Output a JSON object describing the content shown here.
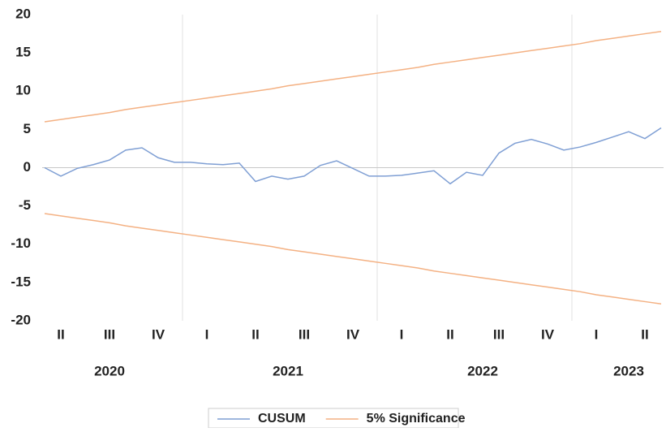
{
  "chart_data": {
    "type": "line",
    "categories": [
      null,
      "II",
      null,
      null,
      "III",
      null,
      null,
      "IV",
      null,
      null,
      "I",
      null,
      null,
      "II",
      null,
      null,
      "III",
      null,
      null,
      "IV",
      null,
      null,
      "I",
      null,
      null,
      "II",
      null,
      null,
      "III",
      null,
      null,
      "IV",
      null,
      null,
      "I",
      null,
      null,
      "II",
      null
    ],
    "years": [
      null,
      null,
      null,
      null,
      "2020",
      null,
      null,
      null,
      null,
      null,
      null,
      null,
      null,
      null,
      null,
      "2021",
      null,
      null,
      null,
      null,
      null,
      null,
      null,
      null,
      null,
      null,
      null,
      "2022",
      null,
      null,
      null,
      null,
      null,
      null,
      null,
      null,
      "2023",
      null,
      null
    ],
    "series": [
      {
        "name": "CUSUM",
        "color": "#7f9fd4",
        "values": [
          0,
          -1.1,
          -0.1,
          0.4,
          1.0,
          2.3,
          2.6,
          1.3,
          0.7,
          0.7,
          0.5,
          0.4,
          0.6,
          -1.8,
          -1.1,
          -1.5,
          -1.1,
          0.3,
          0.9,
          -0.1,
          -1.1,
          -1.1,
          -1.0,
          -0.7,
          -0.4,
          -2.1,
          -0.6,
          -1.0,
          1.9,
          3.2,
          3.7,
          3.1,
          2.3,
          2.7,
          3.3,
          4.0,
          4.7,
          3.8,
          5.2
        ]
      },
      {
        "name": "5% Significance",
        "color": "#f4b183",
        "values": [
          6.0,
          6.3,
          6.6,
          6.9,
          7.2,
          7.6,
          7.9,
          8.2,
          8.5,
          8.8,
          9.1,
          9.4,
          9.7,
          10.0,
          10.3,
          10.7,
          11.0,
          11.3,
          11.6,
          11.9,
          12.2,
          12.5,
          12.8,
          13.1,
          13.5,
          13.8,
          14.1,
          14.4,
          14.7,
          15.0,
          15.3,
          15.6,
          15.9,
          16.2,
          16.6,
          16.9,
          17.2,
          17.5,
          17.8
        ],
        "lower": [
          -6.0,
          -6.3,
          -6.6,
          -6.9,
          -7.2,
          -7.6,
          -7.9,
          -8.2,
          -8.5,
          -8.8,
          -9.1,
          -9.4,
          -9.7,
          -10.0,
          -10.3,
          -10.7,
          -11.0,
          -11.3,
          -11.6,
          -11.9,
          -12.2,
          -12.5,
          -12.8,
          -13.1,
          -13.5,
          -13.8,
          -14.1,
          -14.4,
          -14.7,
          -15.0,
          -15.3,
          -15.6,
          -15.9,
          -16.2,
          -16.6,
          -16.9,
          -17.2,
          -17.5,
          -17.8
        ]
      }
    ],
    "ylim": [
      -20,
      20
    ],
    "yticks": [
      -20,
      -15,
      -10,
      -5,
      0,
      5,
      10,
      15,
      20
    ]
  }
}
